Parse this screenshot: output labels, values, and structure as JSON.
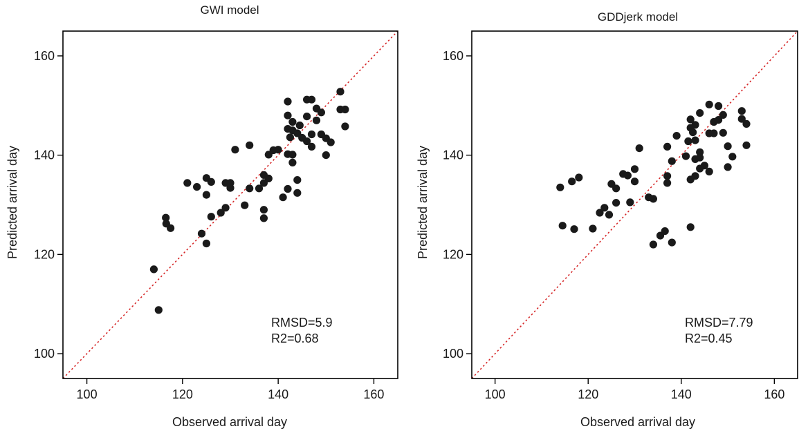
{
  "colors": {
    "point": "#1a1a1a",
    "identity_line": "#d62728",
    "frame": "#000000"
  },
  "chart_data": [
    {
      "type": "scatter",
      "title": "GWI model",
      "xlabel": "Observed arrival day",
      "ylabel": "Predicted arrival day",
      "xlim": [
        95,
        165
      ],
      "ylim": [
        95,
        165
      ],
      "x_ticks": [
        100,
        120,
        140,
        160
      ],
      "y_ticks": [
        100,
        120,
        140,
        160
      ],
      "reference_line": "y = x (dotted)",
      "annotations": [
        "RMSD=5.9",
        "R2=0.68"
      ],
      "points": [
        [
          114,
          117
        ],
        [
          115,
          108.8
        ],
        [
          116.5,
          127.4
        ],
        [
          116.6,
          126.2
        ],
        [
          117.5,
          125.3
        ],
        [
          121,
          134.4
        ],
        [
          123,
          133.6
        ],
        [
          124,
          124.2
        ],
        [
          125,
          135.4
        ],
        [
          125,
          132
        ],
        [
          125,
          122.2
        ],
        [
          126,
          134.6
        ],
        [
          126,
          127.6
        ],
        [
          128,
          128.4
        ],
        [
          129,
          129.4
        ],
        [
          129,
          134.4
        ],
        [
          130,
          133.4
        ],
        [
          130,
          134.4
        ],
        [
          131,
          141.1
        ],
        [
          133,
          129.9
        ],
        [
          134,
          142
        ],
        [
          134,
          133.3
        ],
        [
          136,
          133.3
        ],
        [
          137,
          136
        ],
        [
          137,
          134.4
        ],
        [
          137,
          129
        ],
        [
          137,
          127.3
        ],
        [
          138,
          135.3
        ],
        [
          138,
          140.1
        ],
        [
          139,
          141
        ],
        [
          140,
          141.1
        ],
        [
          141,
          131.5
        ],
        [
          142,
          150.8
        ],
        [
          142,
          148
        ],
        [
          142,
          145.3
        ],
        [
          142,
          140.2
        ],
        [
          142,
          133.2
        ],
        [
          142.5,
          143.6
        ],
        [
          143,
          146.7
        ],
        [
          143,
          145
        ],
        [
          143,
          138.5
        ],
        [
          143,
          140.1
        ],
        [
          144,
          144.4
        ],
        [
          144,
          135
        ],
        [
          144,
          132.4
        ],
        [
          144.5,
          146
        ],
        [
          145,
          143.5
        ],
        [
          146,
          151.2
        ],
        [
          146,
          147.8
        ],
        [
          146,
          142.8
        ],
        [
          147,
          151.2
        ],
        [
          147,
          144.2
        ],
        [
          147,
          141.7
        ],
        [
          148,
          149.4
        ],
        [
          148,
          147
        ],
        [
          149,
          148.6
        ],
        [
          149,
          144.2
        ],
        [
          150,
          140
        ],
        [
          150,
          143.4
        ],
        [
          151,
          142.6
        ],
        [
          153,
          152.8
        ],
        [
          153,
          149.2
        ],
        [
          154,
          149.2
        ],
        [
          154,
          145.8
        ]
      ]
    },
    {
      "type": "scatter",
      "title": "GDDjerk  model",
      "xlabel": "Observed arrival day",
      "ylabel": "Predicted arrival day",
      "xlim": [
        95,
        165
      ],
      "ylim": [
        95,
        165
      ],
      "x_ticks": [
        100,
        120,
        140,
        160
      ],
      "y_ticks": [
        100,
        120,
        140,
        160
      ],
      "reference_line": "y = x (dotted)",
      "annotations": [
        "RMSD=7.79",
        "R2=0.45"
      ],
      "points": [
        [
          114,
          133.5
        ],
        [
          114.5,
          125.8
        ],
        [
          116.5,
          134.7
        ],
        [
          117,
          125.1
        ],
        [
          118,
          135.5
        ],
        [
          121,
          125.2
        ],
        [
          122.5,
          128.4
        ],
        [
          123.5,
          129.4
        ],
        [
          124.5,
          128
        ],
        [
          125,
          134.2
        ],
        [
          126,
          133.3
        ],
        [
          126,
          130.4
        ],
        [
          127.5,
          136.2
        ],
        [
          128.5,
          135.9
        ],
        [
          129,
          130.5
        ],
        [
          130,
          137.2
        ],
        [
          130,
          134.7
        ],
        [
          131,
          141.4
        ],
        [
          133,
          131.5
        ],
        [
          134,
          131.2
        ],
        [
          134,
          122
        ],
        [
          135.5,
          123.8
        ],
        [
          136.5,
          124.7
        ],
        [
          137,
          141.7
        ],
        [
          137,
          135.8
        ],
        [
          137,
          134.4
        ],
        [
          138,
          138.8
        ],
        [
          138,
          122.4
        ],
        [
          139,
          143.9
        ],
        [
          141,
          139.8
        ],
        [
          141.5,
          142.8
        ],
        [
          142,
          147.2
        ],
        [
          142,
          145.5
        ],
        [
          142,
          125.5
        ],
        [
          142,
          135.1
        ],
        [
          142.5,
          144.6
        ],
        [
          143,
          146.1
        ],
        [
          143,
          143
        ],
        [
          143,
          139.2
        ],
        [
          143,
          135.8
        ],
        [
          144,
          148.5
        ],
        [
          144,
          140.6
        ],
        [
          144,
          139.5
        ],
        [
          144,
          137.3
        ],
        [
          145,
          137.9
        ],
        [
          146,
          150.2
        ],
        [
          146,
          144.4
        ],
        [
          146,
          136.7
        ],
        [
          147,
          146.7
        ],
        [
          147,
          144.4
        ],
        [
          148,
          149.9
        ],
        [
          148,
          147.1
        ],
        [
          149,
          148.1
        ],
        [
          149,
          144.5
        ],
        [
          150,
          141.8
        ],
        [
          150,
          137.6
        ],
        [
          151,
          139.7
        ],
        [
          153,
          148.9
        ],
        [
          153,
          147.3
        ],
        [
          154,
          146.3
        ],
        [
          154,
          142
        ]
      ]
    }
  ]
}
